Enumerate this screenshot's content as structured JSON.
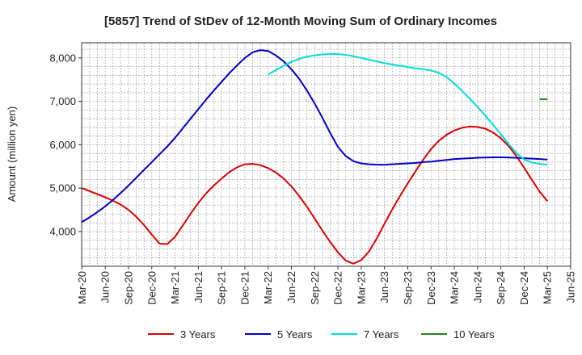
{
  "chart_data": {
    "type": "line",
    "title": "[5857]  Trend of StDev of 12-Month Moving Sum of Ordinary Incomes",
    "xlabel": "",
    "ylabel": "Amount (million yen)",
    "x_ticks": [
      "Mar-20",
      "Jun-20",
      "Sep-20",
      "Dec-20",
      "Mar-21",
      "Jun-21",
      "Sep-21",
      "Dec-21",
      "Mar-22",
      "Jun-22",
      "Sep-22",
      "Dec-22",
      "Mar-23",
      "Jun-23",
      "Sep-23",
      "Dec-23",
      "Mar-24",
      "Jun-24",
      "Sep-24",
      "Dec-24",
      "Mar-25",
      "Jun-25"
    ],
    "y_ticks": [
      "4,000",
      "5,000",
      "6,000",
      "7,000",
      "8,000"
    ],
    "ylim": [
      3200,
      8350
    ],
    "grid": true,
    "legend_position": "bottom",
    "series": [
      {
        "name": "3 Years",
        "color": "#dd0000",
        "points": [
          [
            "2020-03",
            5000
          ],
          [
            "2020-04",
            4930
          ],
          [
            "2020-05",
            4860
          ],
          [
            "2020-06",
            4790
          ],
          [
            "2020-07",
            4710
          ],
          [
            "2020-08",
            4620
          ],
          [
            "2020-09",
            4500
          ],
          [
            "2020-10",
            4340
          ],
          [
            "2020-11",
            4150
          ],
          [
            "2020-12",
            3930
          ],
          [
            "2021-01",
            3720
          ],
          [
            "2021-02",
            3710
          ],
          [
            "2021-03",
            3880
          ],
          [
            "2021-04",
            4140
          ],
          [
            "2021-05",
            4410
          ],
          [
            "2021-06",
            4660
          ],
          [
            "2021-07",
            4880
          ],
          [
            "2021-08",
            5060
          ],
          [
            "2021-09",
            5220
          ],
          [
            "2021-10",
            5370
          ],
          [
            "2021-11",
            5480
          ],
          [
            "2021-12",
            5550
          ],
          [
            "2022-01",
            5560
          ],
          [
            "2022-02",
            5530
          ],
          [
            "2022-03",
            5460
          ],
          [
            "2022-04",
            5360
          ],
          [
            "2022-05",
            5220
          ],
          [
            "2022-06",
            5040
          ],
          [
            "2022-07",
            4820
          ],
          [
            "2022-08",
            4570
          ],
          [
            "2022-09",
            4300
          ],
          [
            "2022-10",
            4020
          ],
          [
            "2022-11",
            3760
          ],
          [
            "2022-12",
            3520
          ],
          [
            "2023-01",
            3330
          ],
          [
            "2023-02",
            3260
          ],
          [
            "2023-03",
            3340
          ],
          [
            "2023-04",
            3540
          ],
          [
            "2023-05",
            3840
          ],
          [
            "2023-06",
            4180
          ],
          [
            "2023-07",
            4510
          ],
          [
            "2023-08",
            4820
          ],
          [
            "2023-09",
            5110
          ],
          [
            "2023-10",
            5390
          ],
          [
            "2023-11",
            5660
          ],
          [
            "2023-12",
            5900
          ],
          [
            "2024-01",
            6090
          ],
          [
            "2024-02",
            6230
          ],
          [
            "2024-03",
            6330
          ],
          [
            "2024-04",
            6390
          ],
          [
            "2024-05",
            6420
          ],
          [
            "2024-06",
            6410
          ],
          [
            "2024-07",
            6370
          ],
          [
            "2024-08",
            6280
          ],
          [
            "2024-09",
            6150
          ],
          [
            "2024-10",
            5970
          ],
          [
            "2024-11",
            5740
          ],
          [
            "2024-12",
            5470
          ],
          [
            "2025-01",
            5190
          ],
          [
            "2025-02",
            4920
          ],
          [
            "2025-03",
            4700
          ]
        ]
      },
      {
        "name": "5 Years",
        "color": "#0000cc",
        "points": [
          [
            "2020-03",
            4220
          ],
          [
            "2020-04",
            4330
          ],
          [
            "2020-05",
            4450
          ],
          [
            "2020-06",
            4580
          ],
          [
            "2020-07",
            4730
          ],
          [
            "2020-08",
            4890
          ],
          [
            "2020-09",
            5060
          ],
          [
            "2020-10",
            5240
          ],
          [
            "2020-11",
            5420
          ],
          [
            "2020-12",
            5600
          ],
          [
            "2021-01",
            5780
          ],
          [
            "2021-02",
            5960
          ],
          [
            "2021-03",
            6160
          ],
          [
            "2021-04",
            6380
          ],
          [
            "2021-05",
            6600
          ],
          [
            "2021-06",
            6820
          ],
          [
            "2021-07",
            7040
          ],
          [
            "2021-08",
            7250
          ],
          [
            "2021-09",
            7450
          ],
          [
            "2021-10",
            7650
          ],
          [
            "2021-11",
            7830
          ],
          [
            "2021-12",
            8000
          ],
          [
            "2022-01",
            8130
          ],
          [
            "2022-02",
            8180
          ],
          [
            "2022-03",
            8160
          ],
          [
            "2022-04",
            8060
          ],
          [
            "2022-05",
            7920
          ],
          [
            "2022-06",
            7740
          ],
          [
            "2022-07",
            7520
          ],
          [
            "2022-08",
            7250
          ],
          [
            "2022-09",
            6950
          ],
          [
            "2022-10",
            6620
          ],
          [
            "2022-11",
            6270
          ],
          [
            "2022-12",
            5950
          ],
          [
            "2023-01",
            5740
          ],
          [
            "2023-02",
            5620
          ],
          [
            "2023-03",
            5570
          ],
          [
            "2023-04",
            5550
          ],
          [
            "2023-05",
            5540
          ],
          [
            "2023-06",
            5540
          ],
          [
            "2023-07",
            5550
          ],
          [
            "2023-08",
            5560
          ],
          [
            "2023-09",
            5570
          ],
          [
            "2023-10",
            5580
          ],
          [
            "2023-11",
            5600
          ],
          [
            "2023-12",
            5610
          ],
          [
            "2024-01",
            5630
          ],
          [
            "2024-02",
            5650
          ],
          [
            "2024-03",
            5670
          ],
          [
            "2024-04",
            5680
          ],
          [
            "2024-05",
            5690
          ],
          [
            "2024-06",
            5700
          ],
          [
            "2024-07",
            5705
          ],
          [
            "2024-08",
            5710
          ],
          [
            "2024-09",
            5710
          ],
          [
            "2024-10",
            5705
          ],
          [
            "2024-11",
            5700
          ],
          [
            "2024-12",
            5690
          ],
          [
            "2025-01",
            5680
          ],
          [
            "2025-02",
            5670
          ],
          [
            "2025-03",
            5660
          ]
        ]
      },
      {
        "name": "7 Years",
        "color": "#00dddd",
        "points": [
          [
            "2022-03",
            7620
          ],
          [
            "2022-04",
            7720
          ],
          [
            "2022-05",
            7820
          ],
          [
            "2022-06",
            7910
          ],
          [
            "2022-07",
            7980
          ],
          [
            "2022-08",
            8030
          ],
          [
            "2022-09",
            8060
          ],
          [
            "2022-10",
            8080
          ],
          [
            "2022-11",
            8090
          ],
          [
            "2022-12",
            8090
          ],
          [
            "2023-01",
            8070
          ],
          [
            "2023-02",
            8040
          ],
          [
            "2023-03",
            8000
          ],
          [
            "2023-04",
            7960
          ],
          [
            "2023-05",
            7920
          ],
          [
            "2023-06",
            7880
          ],
          [
            "2023-07",
            7850
          ],
          [
            "2023-08",
            7820
          ],
          [
            "2023-09",
            7790
          ],
          [
            "2023-10",
            7760
          ],
          [
            "2023-11",
            7740
          ],
          [
            "2023-12",
            7710
          ],
          [
            "2024-01",
            7660
          ],
          [
            "2024-02",
            7560
          ],
          [
            "2024-03",
            7410
          ],
          [
            "2024-04",
            7240
          ],
          [
            "2024-05",
            7060
          ],
          [
            "2024-06",
            6870
          ],
          [
            "2024-07",
            6670
          ],
          [
            "2024-08",
            6460
          ],
          [
            "2024-09",
            6240
          ],
          [
            "2024-10",
            6020
          ],
          [
            "2024-11",
            5810
          ],
          [
            "2024-12",
            5660
          ],
          [
            "2025-01",
            5590
          ],
          [
            "2025-02",
            5560
          ],
          [
            "2025-03",
            5540
          ]
        ]
      },
      {
        "name": "10 Years",
        "color": "#228822",
        "points": [
          [
            "2025-02",
            7050
          ],
          [
            "2025-03",
            7050
          ]
        ]
      }
    ]
  }
}
